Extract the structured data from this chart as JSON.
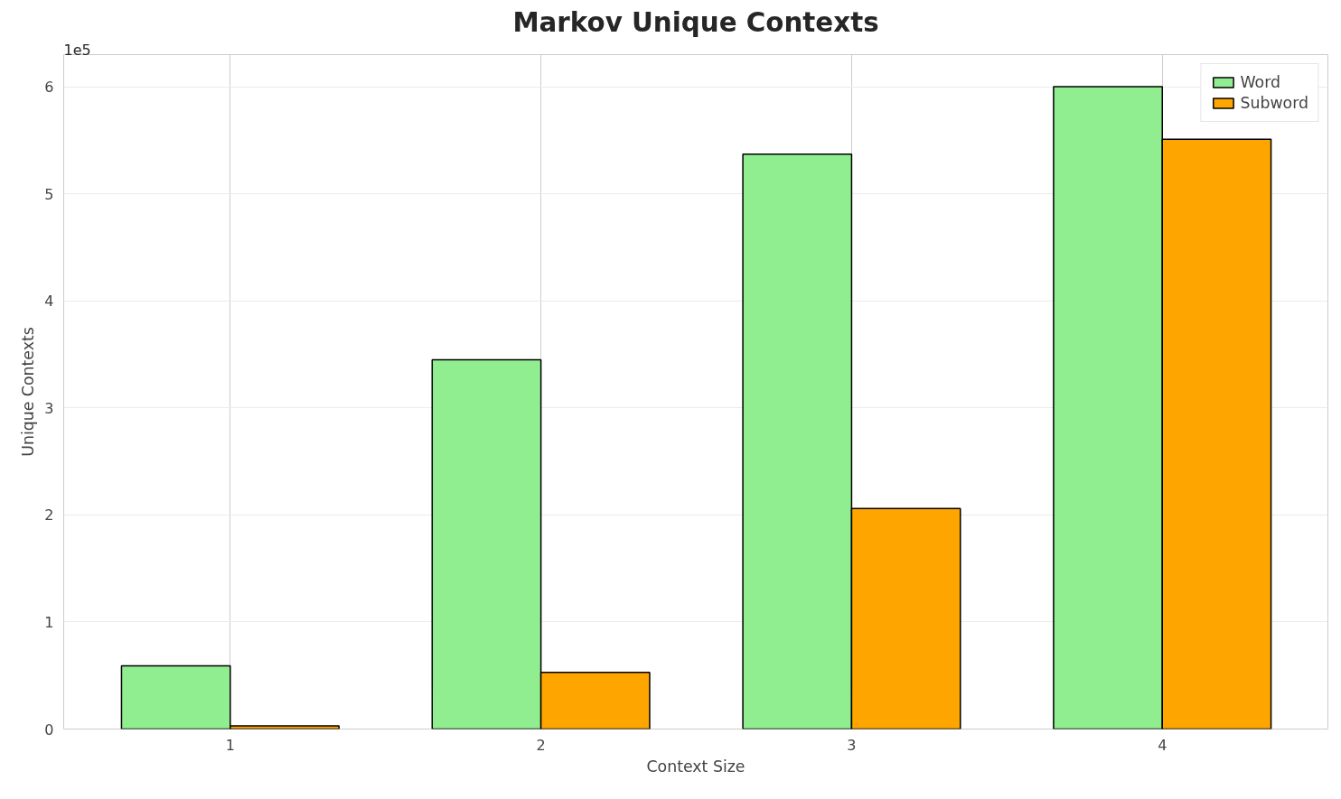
{
  "chart_data": {
    "type": "bar",
    "title": "Markov Unique Contexts",
    "xlabel": "Context Size",
    "ylabel": "Unique Contexts",
    "categories": [
      "1",
      "2",
      "3",
      "4"
    ],
    "series": [
      {
        "name": "Word",
        "color": "#90ee90",
        "values": [
          0.59,
          3.45,
          5.37,
          6.0
        ]
      },
      {
        "name": "Subword",
        "color": "#ffa500",
        "values": [
          0.03,
          0.53,
          2.06,
          5.51
        ]
      }
    ],
    "ylim": [
      0,
      6.3
    ],
    "yticks": [
      0,
      1,
      2,
      3,
      4,
      5,
      6
    ],
    "annotations": [
      "1e5"
    ],
    "grid": true,
    "legend": "top right"
  }
}
